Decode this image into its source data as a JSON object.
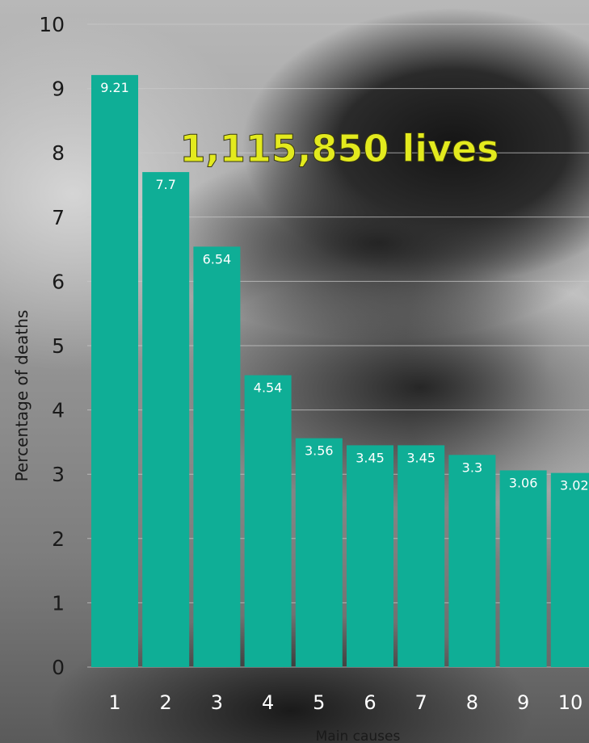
{
  "chart_data": {
    "type": "bar",
    "categories": [
      "1",
      "2",
      "3",
      "4",
      "5",
      "6",
      "7",
      "8",
      "9",
      "10"
    ],
    "values": [
      9.21,
      7.7,
      6.54,
      4.54,
      3.56,
      3.45,
      3.45,
      3.3,
      3.06,
      3.02
    ],
    "value_labels": [
      "9.21",
      "7.7",
      "6.54",
      "4.54",
      "3.56",
      "3.45",
      "3.45",
      "3.3",
      "3.06",
      "3.02"
    ],
    "yticks": [
      "0",
      "1",
      "2",
      "3",
      "4",
      "5",
      "6",
      "7",
      "8",
      "9",
      "10"
    ],
    "ylim": [
      0,
      10
    ],
    "xlabel": "Main causes",
    "ylabel": "Percentage of deaths",
    "annotation": "1,115,850 lives",
    "grid": true,
    "colors": {
      "bar": "#0fae96",
      "annotation": "#e3ea1e",
      "grid": "#c9c9c9"
    }
  }
}
